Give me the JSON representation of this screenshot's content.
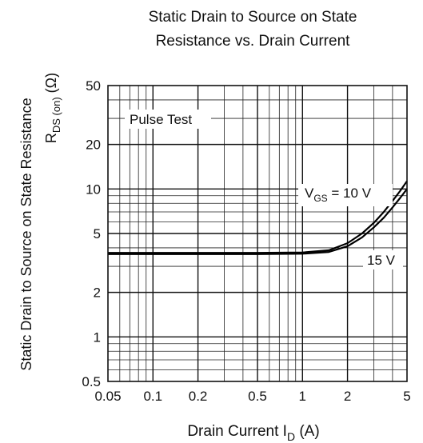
{
  "chart_data": {
    "type": "line",
    "title_lines": [
      "Static Drain to Source on State",
      "Resistance vs. Drain Current"
    ],
    "xlabel": {
      "main": "Drain Current  I",
      "sub": "D",
      "unit": "  (A)"
    },
    "ylabel": {
      "line1": "Static Drain to Source on State Resistance",
      "line2_main": "R",
      "line2_sub": "DS (on)",
      "line2_unit": "  (Ω)"
    },
    "x_scale": "log",
    "y_scale": "log",
    "xlim": [
      0.05,
      5
    ],
    "ylim": [
      0.5,
      50
    ],
    "x_ticks": [
      0.05,
      0.1,
      0.2,
      0.5,
      1,
      2,
      5
    ],
    "x_tick_labels": [
      "0.05",
      "0.1",
      "0.2",
      "0.5",
      "1",
      "2",
      "5"
    ],
    "y_ticks": [
      0.5,
      1,
      2,
      5,
      10,
      20,
      50
    ],
    "y_tick_labels": [
      "0.5",
      "1",
      "2",
      "5",
      "10",
      "20",
      "50"
    ],
    "grid": true,
    "annotation": "Pulse Test",
    "series": [
      {
        "name": "VGS = 10 V",
        "label_main": "V",
        "label_sub": "GS",
        "label_rest": " = 10 V",
        "x": [
          0.05,
          0.1,
          0.5,
          1,
          1.5,
          2,
          2.5,
          3,
          3.5,
          4,
          4.5,
          5
        ],
        "y": [
          3.7,
          3.7,
          3.7,
          3.72,
          3.85,
          4.3,
          5.0,
          5.9,
          7.0,
          8.3,
          9.7,
          11.3
        ]
      },
      {
        "name": "15 V",
        "label_main": "15 V",
        "x": [
          0.05,
          0.1,
          0.5,
          1,
          1.5,
          2,
          2.5,
          3,
          3.5,
          4,
          4.5,
          5
        ],
        "y": [
          3.63,
          3.63,
          3.63,
          3.65,
          3.75,
          4.1,
          4.7,
          5.5,
          6.4,
          7.5,
          8.7,
          10.0
        ]
      }
    ]
  }
}
